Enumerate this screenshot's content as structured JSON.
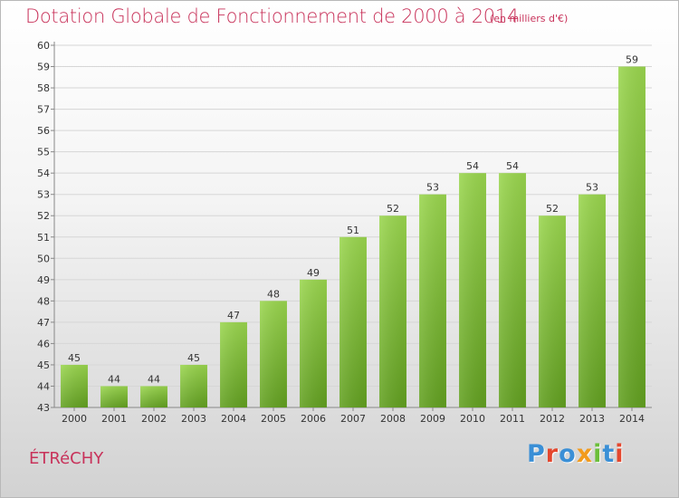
{
  "header": {
    "title": "Dotation Globale de Fonctionnement de 2000 à 2014",
    "subtitle": "(en milliers d'€)"
  },
  "footer": {
    "commune": "ÉTRéCHY",
    "logo_text": "Proxiti",
    "logo_letter_colors": [
      "#3a8fd6",
      "#e4472e",
      "#3a8fd6",
      "#f29b1d",
      "#6bbf3a",
      "#3a8fd6",
      "#e4472e"
    ]
  },
  "chart_data": {
    "type": "bar",
    "categories": [
      "2000",
      "2001",
      "2002",
      "2003",
      "2004",
      "2005",
      "2006",
      "2007",
      "2008",
      "2009",
      "2010",
      "2011",
      "2012",
      "2013",
      "2014"
    ],
    "values": [
      45,
      44,
      44,
      45,
      47,
      48,
      49,
      51,
      52,
      53,
      54,
      54,
      52,
      53,
      59
    ],
    "ylim": [
      43,
      60
    ],
    "yticks": [
      43,
      44,
      45,
      46,
      47,
      48,
      49,
      50,
      51,
      52,
      53,
      54,
      55,
      56,
      57,
      58,
      59,
      60
    ],
    "grid": true,
    "bar_color": "#7dc433",
    "data_labels": true
  }
}
